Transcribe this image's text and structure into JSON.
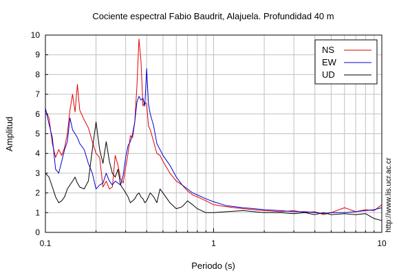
{
  "chart_data": {
    "type": "line",
    "title": "Cociente espectral Fabio Baudrit, Alajuela. Profundidad 40 m",
    "xlabel": "Periodo (s)",
    "ylabel": "Amplitud",
    "x_scale": "log",
    "xlim": [
      0.1,
      10
    ],
    "ylim": [
      0,
      10
    ],
    "x_ticks": [
      "0.1",
      "1",
      "10"
    ],
    "y_ticks": [
      "0",
      "1",
      "2",
      "3",
      "4",
      "5",
      "6",
      "7",
      "8",
      "9",
      "10"
    ],
    "grid": true,
    "legend_position": "top-right",
    "watermark": "http://www.lis.ucr.ac.cr",
    "series": [
      {
        "name": "NS",
        "color": "#e00000",
        "x": [
          0.1,
          0.105,
          0.11,
          0.115,
          0.12,
          0.125,
          0.13,
          0.135,
          0.14,
          0.145,
          0.15,
          0.155,
          0.16,
          0.17,
          0.18,
          0.19,
          0.2,
          0.21,
          0.22,
          0.23,
          0.24,
          0.25,
          0.26,
          0.27,
          0.28,
          0.29,
          0.3,
          0.31,
          0.32,
          0.33,
          0.34,
          0.35,
          0.36,
          0.37,
          0.38,
          0.39,
          0.4,
          0.41,
          0.42,
          0.44,
          0.46,
          0.48,
          0.5,
          0.55,
          0.6,
          0.65,
          0.7,
          0.75,
          0.8,
          0.9,
          1.0,
          1.2,
          1.5,
          2.0,
          2.5,
          3.0,
          3.5,
          4.0,
          4.5,
          5.0,
          6.0,
          7.0,
          8.0,
          9.0,
          10.0
        ],
        "y": [
          6.2,
          5.8,
          4.5,
          3.8,
          4.2,
          3.9,
          4.3,
          5.0,
          6.2,
          7.0,
          6.1,
          7.5,
          6.2,
          5.7,
          5.3,
          4.6,
          4.0,
          3.8,
          2.3,
          2.6,
          2.2,
          2.3,
          3.9,
          3.4,
          2.7,
          2.5,
          3.3,
          4.0,
          4.9,
          4.8,
          5.6,
          7.4,
          9.8,
          8.7,
          6.4,
          6.6,
          6.5,
          5.4,
          5.2,
          4.6,
          4.0,
          3.9,
          3.6,
          3.0,
          2.6,
          2.4,
          2.1,
          1.9,
          1.8,
          1.6,
          1.4,
          1.3,
          1.2,
          1.1,
          1.05,
          1.1,
          1.0,
          1.05,
          0.9,
          1.0,
          1.25,
          1.05,
          1.15,
          1.1,
          1.4
        ]
      },
      {
        "name": "EW",
        "color": "#0000d0",
        "x": [
          0.1,
          0.105,
          0.11,
          0.115,
          0.12,
          0.125,
          0.13,
          0.135,
          0.14,
          0.145,
          0.15,
          0.155,
          0.16,
          0.17,
          0.18,
          0.19,
          0.2,
          0.21,
          0.22,
          0.23,
          0.24,
          0.25,
          0.26,
          0.27,
          0.28,
          0.29,
          0.3,
          0.31,
          0.32,
          0.33,
          0.34,
          0.35,
          0.36,
          0.37,
          0.38,
          0.39,
          0.4,
          0.41,
          0.42,
          0.44,
          0.46,
          0.48,
          0.5,
          0.55,
          0.6,
          0.65,
          0.7,
          0.75,
          0.8,
          0.9,
          1.0,
          1.2,
          1.5,
          2.0,
          2.5,
          3.0,
          3.5,
          4.0,
          4.5,
          5.0,
          6.0,
          7.0,
          8.0,
          9.0,
          10.0
        ],
        "y": [
          6.3,
          5.5,
          4.8,
          3.2,
          3.0,
          3.6,
          4.2,
          4.6,
          5.8,
          5.2,
          5.0,
          4.8,
          4.5,
          4.2,
          3.5,
          3.0,
          2.2,
          2.4,
          2.5,
          3.0,
          2.6,
          2.4,
          2.6,
          2.5,
          2.4,
          2.9,
          3.8,
          4.4,
          4.6,
          5.0,
          5.6,
          6.6,
          6.9,
          6.7,
          6.8,
          6.4,
          8.3,
          6.5,
          6.0,
          5.4,
          4.5,
          4.2,
          3.9,
          3.4,
          2.8,
          2.4,
          2.2,
          2.0,
          1.9,
          1.7,
          1.55,
          1.35,
          1.25,
          1.15,
          1.1,
          1.05,
          1.05,
          1.0,
          0.95,
          1.0,
          1.0,
          1.05,
          1.1,
          1.15,
          1.25
        ]
      },
      {
        "name": "UD",
        "color": "#000000",
        "x": [
          0.1,
          0.105,
          0.11,
          0.115,
          0.12,
          0.125,
          0.13,
          0.135,
          0.14,
          0.145,
          0.15,
          0.155,
          0.16,
          0.17,
          0.18,
          0.19,
          0.2,
          0.21,
          0.22,
          0.23,
          0.24,
          0.25,
          0.26,
          0.27,
          0.28,
          0.29,
          0.3,
          0.31,
          0.32,
          0.33,
          0.34,
          0.35,
          0.36,
          0.37,
          0.38,
          0.39,
          0.4,
          0.41,
          0.42,
          0.44,
          0.46,
          0.48,
          0.5,
          0.55,
          0.6,
          0.65,
          0.7,
          0.75,
          0.8,
          0.9,
          1.0,
          1.2,
          1.5,
          2.0,
          2.5,
          3.0,
          3.5,
          4.0,
          4.5,
          5.0,
          6.0,
          7.0,
          8.0,
          9.0,
          10.0
        ],
        "y": [
          3.0,
          2.8,
          2.3,
          1.8,
          1.5,
          1.6,
          1.8,
          2.2,
          2.4,
          2.6,
          2.8,
          2.5,
          2.3,
          2.2,
          2.6,
          4.2,
          5.6,
          4.2,
          3.5,
          4.6,
          3.6,
          3.0,
          2.8,
          3.2,
          2.4,
          2.2,
          2.0,
          1.8,
          1.5,
          1.6,
          1.7,
          1.9,
          2.0,
          1.8,
          1.7,
          1.5,
          1.6,
          1.8,
          2.0,
          1.8,
          1.5,
          2.2,
          2.0,
          1.5,
          1.2,
          1.3,
          1.6,
          1.4,
          1.2,
          1.0,
          1.0,
          1.05,
          1.1,
          1.0,
          1.0,
          0.95,
          1.0,
          0.9,
          1.0,
          0.9,
          0.95,
          0.9,
          0.95,
          0.7,
          0.6
        ]
      }
    ]
  }
}
